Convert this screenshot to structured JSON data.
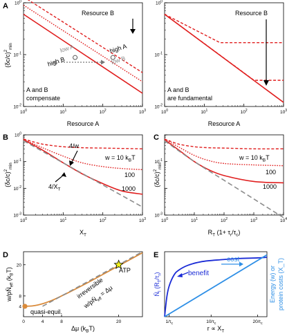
{
  "colors": {
    "red": "#e01e1e",
    "gray": "#8c8c8c",
    "orange": "#d98a3a",
    "blue_dark": "#1a2bd6",
    "blue_light": "#2e8fe6",
    "star": "#f2f21a"
  },
  "panels": {
    "A1": {
      "letter": "A",
      "xlabel": "Resource A",
      "ylabel": "(δc/c)²min",
      "resource_b_label": "Resource B",
      "texts": [
        "low A",
        "high B",
        "high A",
        "low B"
      ],
      "box_text": [
        "A and B",
        "compensate"
      ]
    },
    "A2": {
      "xlabel": "Resource A",
      "resource_b_label": "Resource B",
      "box_text": [
        "A and B",
        "are fundamental"
      ]
    },
    "B": {
      "letter": "B",
      "xlabel": "X_T",
      "ylabel": "(δc/c)²min",
      "labels": [
        "4/w",
        "4/X_T",
        "w = 10 k_B T",
        "100",
        "1000"
      ]
    },
    "C": {
      "letter": "C",
      "xlabel": "R_T (1+ τ_r/τ_c)",
      "ylabel": "(δc/c)²min",
      "labels": [
        "w = 10 k_B T",
        "100",
        "1000"
      ]
    },
    "D": {
      "letter": "D",
      "xlabel": "Δμ (k_B T)",
      "ylabel": "w/p N̄_eff (k_B T)",
      "labels": [
        "ATP",
        "irreversible",
        "w/pN̄_eff = Δμ",
        "quasi-equil."
      ]
    },
    "E": {
      "letter": "E",
      "xlabel": "r ∝ X_T",
      "ylabel_left": "N̄_I (R_T/τ_r)",
      "ylabel_right_1": "Energy (w) or",
      "ylabel_right_2": "protein costs (X_T)",
      "labels": [
        "benefit",
        "cost"
      ]
    }
  },
  "chart_data": [
    {
      "id": "A1",
      "type": "line",
      "x_scale": "log",
      "y_scale": "log",
      "xlabel": "Resource A",
      "ylabel": "(δc/c)²min",
      "xlim": [
        1,
        1000
      ],
      "ylim": [
        0.01,
        1
      ],
      "x_ticks": [
        "10^0",
        "10^1",
        "10^2",
        "10^3"
      ],
      "y_ticks": [
        "10^-2",
        "10^-1",
        "10^0"
      ],
      "series": [
        {
          "style": "solid",
          "x": [
            1,
            1000
          ],
          "y": [
            0.6,
            0.018
          ]
        },
        {
          "style": "dashed",
          "x": [
            1,
            1000
          ],
          "y": [
            1.3,
            0.045
          ]
        },
        {
          "style": "dotted",
          "x": [
            1,
            1000
          ],
          "y": [
            0.9,
            0.03
          ]
        }
      ],
      "points": [
        {
          "label": "high B",
          "x": 20,
          "y": 0.088
        },
        {
          "label": "high A",
          "x": 180,
          "y": 0.088
        }
      ]
    },
    {
      "id": "A2",
      "type": "line",
      "x_scale": "log",
      "y_scale": "log",
      "xlabel": "Resource A",
      "xlim": [
        1,
        1000
      ],
      "ylim": [
        0.01,
        1
      ],
      "x_ticks": [
        "10^0",
        "10^1",
        "10^2",
        "10^3"
      ],
      "y_ticks": [
        "10^-2",
        "10^-1",
        "10^0"
      ],
      "series": [
        {
          "style": "solid",
          "x": [
            1,
            1000
          ],
          "y": [
            0.6,
            0.012
          ]
        },
        {
          "style": "dashed",
          "x": [
            1,
            25,
            1000
          ],
          "y": [
            0.6,
            0.17,
            0.17
          ]
        },
        {
          "style": "dashed",
          "x": [
            1,
            180,
            1000
          ],
          "y": [
            0.6,
            0.032,
            0.032
          ]
        }
      ]
    },
    {
      "id": "B",
      "type": "line",
      "x_scale": "log",
      "y_scale": "log",
      "xlabel": "X_T",
      "ylabel": "(δc/c)²min",
      "xlim": [
        1,
        1000
      ],
      "ylim": [
        0.001,
        1
      ],
      "x_ticks": [
        "10^0",
        "10^1",
        "10^2",
        "10^3"
      ],
      "y_ticks": [
        "10^-3",
        "10^-2",
        "10^-1",
        "10^0"
      ],
      "series": [
        {
          "name": "10",
          "style": "dashed",
          "x": [
            1,
            3,
            10,
            30,
            100,
            300,
            1000
          ],
          "y": [
            0.7,
            0.45,
            0.36,
            0.33,
            0.32,
            0.31,
            0.3
          ]
        },
        {
          "name": "100",
          "style": "dotted",
          "x": [
            1,
            3,
            10,
            30,
            100,
            300,
            1000
          ],
          "y": [
            0.68,
            0.33,
            0.16,
            0.09,
            0.065,
            0.055,
            0.05
          ]
        },
        {
          "name": "1000",
          "style": "solid",
          "x": [
            1,
            3,
            10,
            30,
            100,
            300,
            1000
          ],
          "y": [
            0.65,
            0.27,
            0.09,
            0.035,
            0.015,
            0.008,
            0.006
          ]
        },
        {
          "name": "4/X_T",
          "style": "gray-dashed",
          "x": [
            1,
            1000
          ],
          "y": [
            0.6,
            0.002
          ]
        }
      ]
    },
    {
      "id": "C",
      "type": "line",
      "x_scale": "log",
      "y_scale": "log",
      "xlabel": "R_T (1+ τ_r/τ_c)",
      "ylabel": "(δc/c)²min",
      "xlim": [
        1,
        10000
      ],
      "ylim": [
        0.001,
        1
      ],
      "x_ticks": [
        "10^0",
        "10^1",
        "10^2",
        "10^3",
        "10^4"
      ],
      "y_ticks": [
        "10^-3",
        "10^-1"
      ],
      "series": [
        {
          "name": "10",
          "style": "dashed",
          "x": [
            1,
            3,
            10,
            30,
            100,
            1000,
            10000
          ],
          "y": [
            0.7,
            0.45,
            0.36,
            0.33,
            0.32,
            0.3,
            0.3
          ]
        },
        {
          "name": "100",
          "style": "dotted",
          "x": [
            1,
            3,
            10,
            30,
            100,
            1000,
            10000
          ],
          "y": [
            0.68,
            0.35,
            0.17,
            0.11,
            0.085,
            0.075,
            0.07
          ]
        },
        {
          "name": "1000",
          "style": "solid",
          "x": [
            1,
            3,
            10,
            30,
            100,
            1000,
            10000
          ],
          "y": [
            0.65,
            0.27,
            0.1,
            0.05,
            0.03,
            0.018,
            0.016
          ]
        },
        {
          "name": "",
          "style": "gray-dashed",
          "x": [
            1,
            10,
            100,
            1000,
            10000
          ],
          "y": [
            0.6,
            0.1,
            0.02,
            0.004,
            0.0008
          ]
        }
      ]
    },
    {
      "id": "D",
      "type": "line",
      "xlabel": "Δμ (k_B T)",
      "ylabel": "w/p N̄_eff (k_B T)",
      "xlim": [
        0,
        25
      ],
      "ylim": [
        0,
        25
      ],
      "x_ticks": [
        "0",
        "4",
        "8",
        "20"
      ],
      "y_ticks": [
        "4",
        "8",
        "20"
      ],
      "series": [
        {
          "style": "solid",
          "x": [
            0,
            2,
            4,
            6,
            8,
            10,
            14,
            18,
            22,
            25
          ],
          "y": [
            4.0,
            4.2,
            5.0,
            6.3,
            8.0,
            9.8,
            13.6,
            17.6,
            21.6,
            24.6
          ]
        },
        {
          "style": "gray-dashed",
          "x": [
            4,
            25
          ],
          "y": [
            4,
            25
          ]
        }
      ],
      "points": [
        {
          "label": "quasi-equil.",
          "x": 0,
          "y": 4
        },
        {
          "label": "ATP",
          "x": 20,
          "y": 20
        }
      ]
    },
    {
      "id": "E",
      "type": "line",
      "xlabel": "r ∝ X_T",
      "ylabel": "N̄_I (R_T/τ_r)",
      "xlim": [
        0,
        22
      ],
      "ylim": [
        0,
        1.05
      ],
      "x_ticks": [
        "1/τ_c",
        "10/τ_c",
        "20/τ_c"
      ],
      "series": [
        {
          "name": "benefit",
          "style": "solid",
          "x": [
            0,
            0.5,
            1,
            2,
            3,
            5,
            8,
            12,
            16,
            20,
            22
          ],
          "y": [
            0,
            0.33,
            0.5,
            0.67,
            0.75,
            0.83,
            0.89,
            0.92,
            0.94,
            0.95,
            0.96
          ]
        },
        {
          "name": "cost",
          "style": "solid",
          "x": [
            0,
            22
          ],
          "y": [
            0,
            1.0
          ]
        }
      ]
    }
  ]
}
